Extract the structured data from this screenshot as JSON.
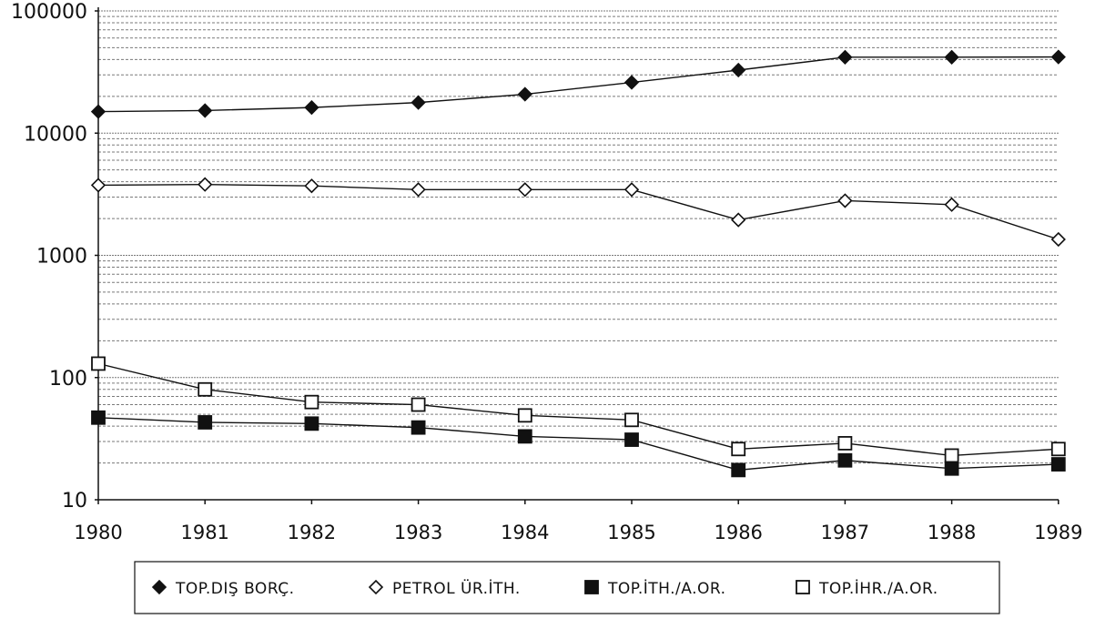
{
  "chart_data": {
    "type": "line",
    "title": "",
    "xlabel": "",
    "ylabel": "",
    "yscale": "log",
    "ylim": [
      10,
      100000
    ],
    "yticks": [
      10,
      100,
      1000,
      10000,
      100000
    ],
    "ytick_labels": [
      "10",
      "100",
      "1000",
      "10000",
      "100000"
    ],
    "x": [
      "1980",
      "1981",
      "1982",
      "1983",
      "1984",
      "1985",
      "1986",
      "1987",
      "1988",
      "1989"
    ],
    "grid": "dense horizontal dotted",
    "legend_position": "bottom",
    "series": [
      {
        "name": "TOP.DIŞ BORÇ.",
        "marker": "diamond-filled",
        "values": [
          15000,
          15300,
          16200,
          17800,
          20800,
          26000,
          32800,
          41800,
          41800,
          42000
        ]
      },
      {
        "name": "PETROL ÜR.İTH.",
        "marker": "diamond-open",
        "values": [
          3750,
          3800,
          3700,
          3450,
          3450,
          3450,
          1950,
          2800,
          2600,
          1350
        ]
      },
      {
        "name": "TOP.İTH./A.OR.",
        "marker": "square-filled",
        "values": [
          47,
          43,
          42,
          39,
          33,
          31,
          17.5,
          21,
          18,
          19.5
        ]
      },
      {
        "name": "TOP.İHR./A.OR.",
        "marker": "square-open",
        "values": [
          130,
          80,
          63,
          60,
          49,
          45,
          26,
          29,
          23,
          26
        ]
      }
    ],
    "colors": {
      "ink": "#111111",
      "grid": "#7a7a7a",
      "background": "#ffffff"
    }
  }
}
